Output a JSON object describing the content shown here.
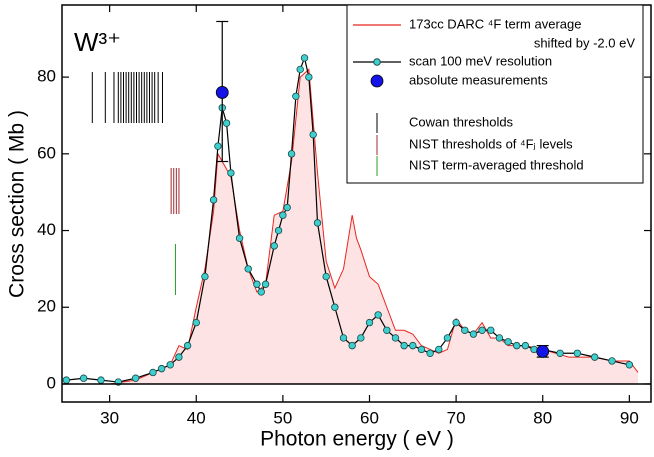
{
  "chart_data": {
    "type": "line",
    "annotation": "W³⁺",
    "xlabel": "Photon energy  ( eV )",
    "ylabel": "Cross section  ( Mb )",
    "xlim": [
      24.5,
      92.5
    ],
    "ylim": [
      -4.7,
      98.8
    ],
    "xticks": [
      30,
      40,
      50,
      60,
      70,
      80,
      90
    ],
    "yticks": [
      0,
      20,
      40,
      60,
      80
    ],
    "zero_line": true,
    "legend": "upper right",
    "series": [
      {
        "name": "173cc DARC ⁴F term average",
        "name_continued": "shifted by -2.0 eV",
        "kind": "area-line",
        "color": "#e8261e",
        "fill": "#fde3e3",
        "x": [
          25,
          30,
          33,
          35,
          37,
          38,
          39,
          40,
          41,
          42,
          42.5,
          43,
          44,
          45,
          46,
          47,
          48,
          49,
          50,
          51,
          52,
          53,
          54,
          55,
          56,
          57,
          58,
          58.5,
          59,
          60,
          61,
          62,
          63,
          64,
          65,
          66,
          67,
          68,
          69,
          70,
          71,
          72,
          73,
          74,
          75,
          76,
          78,
          80,
          83,
          86,
          88,
          90,
          91
        ],
        "values": [
          0,
          0,
          1,
          3,
          5,
          10,
          9,
          20,
          30,
          45,
          60,
          58,
          54,
          40,
          30,
          24,
          26,
          44,
          45,
          58,
          80,
          82,
          55,
          32,
          25,
          30,
          44,
          38,
          35,
          28,
          26,
          20,
          14,
          14,
          13,
          10,
          9,
          8,
          9,
          17,
          14,
          13,
          16,
          12,
          12,
          10,
          10,
          9,
          7,
          7,
          6,
          6,
          3
        ]
      },
      {
        "name": "scan 100 meV resolution",
        "kind": "line-marker",
        "color": "#000000",
        "marker_color": "#3fcfcf",
        "x": [
          25,
          27,
          29,
          31,
          33,
          35,
          36,
          37,
          38,
          39,
          40,
          41,
          42,
          42.5,
          43,
          43.5,
          44,
          45,
          46,
          47,
          47.5,
          48,
          49,
          49.5,
          50,
          50.5,
          51,
          51.5,
          52,
          52.5,
          53,
          53.5,
          54,
          55,
          56,
          57,
          58,
          59,
          60,
          61,
          62,
          63,
          64,
          65,
          66,
          67,
          68,
          69,
          70,
          71,
          72,
          73,
          74,
          75,
          76,
          77,
          78,
          79,
          80,
          82,
          84,
          86,
          88,
          90
        ],
        "values": [
          1,
          1.5,
          1,
          0.5,
          1.5,
          3,
          4,
          5,
          7,
          10,
          16,
          28,
          48,
          62,
          72,
          68,
          55,
          38,
          30,
          26,
          24,
          26,
          36,
          40,
          44,
          46,
          60,
          75,
          82,
          85,
          80,
          65,
          42,
          28,
          20,
          12,
          10,
          12,
          16,
          18,
          14,
          12,
          10,
          10,
          9,
          8,
          9,
          12,
          16,
          14,
          13,
          14,
          14,
          12,
          11,
          10,
          10,
          9,
          9,
          8,
          8,
          7,
          6,
          5
        ]
      },
      {
        "name": "absolute measurements",
        "kind": "errorbar",
        "color": "#1414e6",
        "x": [
          43,
          80
        ],
        "values": [
          76,
          8.5
        ],
        "error_plus": [
          18.5,
          1.5
        ],
        "error_minus": [
          18,
          1.5
        ]
      },
      {
        "name": "Cowan thresholds",
        "kind": "vlines",
        "color": "#000000",
        "x": [
          28,
          29.5,
          30.5,
          31,
          31.3,
          31.6,
          31.9,
          32.2,
          32.5,
          32.8,
          33.1,
          33.4,
          33.7,
          34,
          34.3,
          34.6,
          34.9,
          35.2,
          35.6,
          36.1
        ]
      },
      {
        "name": "NIST thresholds of ⁴Fⱼ levels",
        "kind": "vlines",
        "color": "#a0282d",
        "x": [
          37.1,
          37.4,
          37.7,
          38.0
        ]
      },
      {
        "name": "NIST term-averaged threshold",
        "kind": "vlines",
        "color": "#28a028",
        "x": [
          37.6
        ]
      }
    ]
  }
}
